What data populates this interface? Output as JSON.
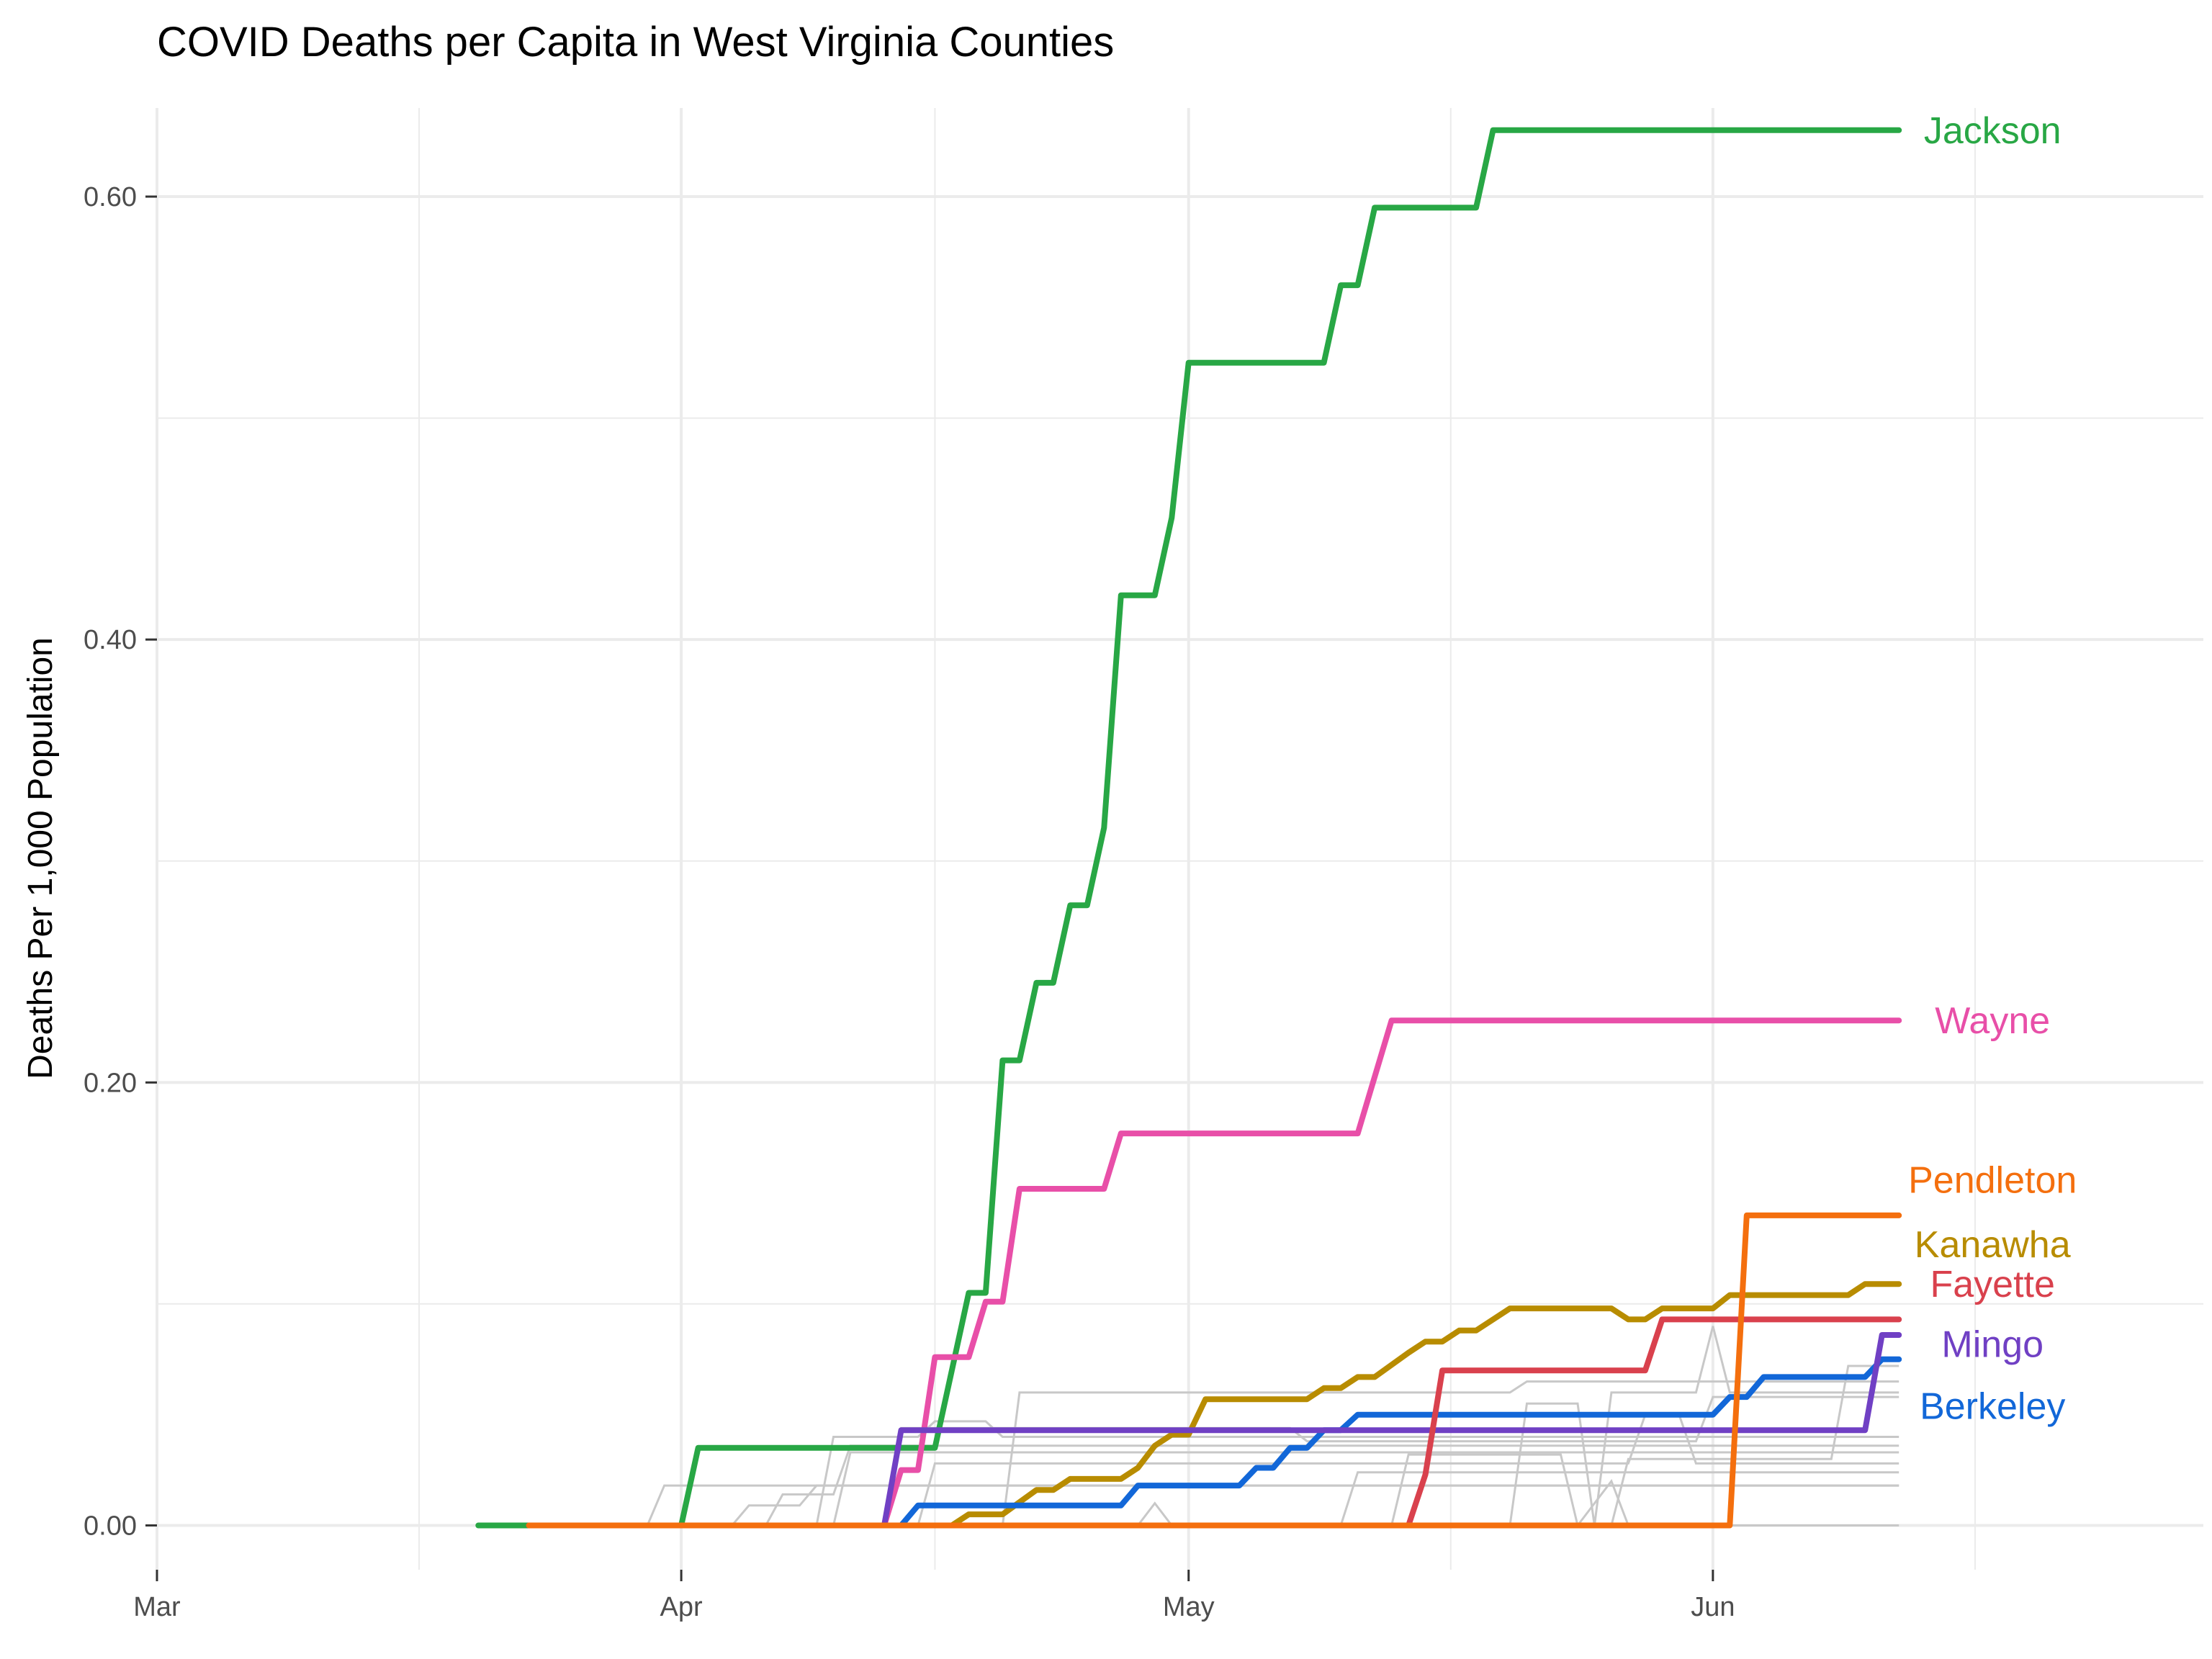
{
  "chart_data": {
    "type": "line",
    "title": "COVID Deaths per Capita in West Virginia Counties",
    "xlabel": "",
    "ylabel": "Deaths Per 1,000 Population",
    "x_type": "date",
    "xlim": [
      "2020-03-01",
      "2020-06-30"
    ],
    "ylim": [
      -0.02,
      0.64
    ],
    "x_ticks": [
      {
        "date": "2020-03-01",
        "label": "Mar"
      },
      {
        "date": "2020-04-01",
        "label": "Apr"
      },
      {
        "date": "2020-05-01",
        "label": "May"
      },
      {
        "date": "2020-06-01",
        "label": "Jun"
      }
    ],
    "y_ticks": [
      {
        "value": 0,
        "label": "0.00"
      },
      {
        "value": 0.2,
        "label": "0.20"
      },
      {
        "value": 0.4,
        "label": "0.40"
      },
      {
        "value": 0.6,
        "label": "0.60"
      }
    ],
    "grid": true,
    "legend": "none",
    "colors": {
      "Jackson": "#28a745",
      "Wayne": "#e84fa8",
      "Pendleton": "#f46f0e",
      "Kanawha": "#b88c00",
      "Fayette": "#d9414d",
      "Mingo": "#7040c4",
      "Berkeley": "#1267d8",
      "background": "#c8c8c8"
    },
    "series": [
      {
        "name": "Jackson",
        "points": [
          [
            "2020-03-20",
            0
          ],
          [
            "2020-04-01",
            0
          ],
          [
            "2020-04-02",
            0.035
          ],
          [
            "2020-04-16",
            0.035
          ],
          [
            "2020-04-17",
            0.07
          ],
          [
            "2020-04-18",
            0.105
          ],
          [
            "2020-04-19",
            0.105
          ],
          [
            "2020-04-20",
            0.21
          ],
          [
            "2020-04-21",
            0.21
          ],
          [
            "2020-04-22",
            0.245
          ],
          [
            "2020-04-23",
            0.245
          ],
          [
            "2020-04-24",
            0.28
          ],
          [
            "2020-04-25",
            0.28
          ],
          [
            "2020-04-26",
            0.315
          ],
          [
            "2020-04-27",
            0.42
          ],
          [
            "2020-04-28",
            0.42
          ],
          [
            "2020-04-29",
            0.42
          ],
          [
            "2020-04-30",
            0.455
          ],
          [
            "2020-05-01",
            0.525
          ],
          [
            "2020-05-09",
            0.525
          ],
          [
            "2020-05-10",
            0.56
          ],
          [
            "2020-05-11",
            0.56
          ],
          [
            "2020-05-12",
            0.595
          ],
          [
            "2020-05-18",
            0.595
          ],
          [
            "2020-05-19",
            0.63
          ],
          [
            "2020-06-12",
            0.63
          ]
        ]
      },
      {
        "name": "Wayne",
        "points": [
          [
            "2020-04-09",
            0
          ],
          [
            "2020-04-13",
            0
          ],
          [
            "2020-04-14",
            0.025
          ],
          [
            "2020-04-15",
            0.025
          ],
          [
            "2020-04-16",
            0.076
          ],
          [
            "2020-04-18",
            0.076
          ],
          [
            "2020-04-19",
            0.101
          ],
          [
            "2020-04-20",
            0.101
          ],
          [
            "2020-04-21",
            0.152
          ],
          [
            "2020-04-26",
            0.152
          ],
          [
            "2020-04-27",
            0.177
          ],
          [
            "2020-05-11",
            0.177
          ],
          [
            "2020-05-13",
            0.228
          ],
          [
            "2020-06-12",
            0.228
          ]
        ]
      },
      {
        "name": "Kanawha",
        "points": [
          [
            "2020-03-23",
            0
          ],
          [
            "2020-04-17",
            0
          ],
          [
            "2020-04-18",
            0.005
          ],
          [
            "2020-04-20",
            0.005
          ],
          [
            "2020-04-22",
            0.016
          ],
          [
            "2020-04-23",
            0.016
          ],
          [
            "2020-04-24",
            0.021
          ],
          [
            "2020-04-27",
            0.021
          ],
          [
            "2020-04-28",
            0.026
          ],
          [
            "2020-04-29",
            0.036
          ],
          [
            "2020-04-30",
            0.041
          ],
          [
            "2020-05-01",
            0.041
          ],
          [
            "2020-05-02",
            0.057
          ],
          [
            "2020-05-08",
            0.057
          ],
          [
            "2020-05-09",
            0.062
          ],
          [
            "2020-05-10",
            0.062
          ],
          [
            "2020-05-11",
            0.067
          ],
          [
            "2020-05-12",
            0.067
          ],
          [
            "2020-05-14",
            0.078
          ],
          [
            "2020-05-15",
            0.083
          ],
          [
            "2020-05-16",
            0.083
          ],
          [
            "2020-05-17",
            0.088
          ],
          [
            "2020-05-18",
            0.088
          ],
          [
            "2020-05-20",
            0.098
          ],
          [
            "2020-05-22",
            0.098
          ],
          [
            "2020-05-23",
            0.098
          ],
          [
            "2020-05-26",
            0.098
          ],
          [
            "2020-05-27",
            0.093
          ],
          [
            "2020-05-28",
            0.093
          ],
          [
            "2020-05-29",
            0.098
          ],
          [
            "2020-05-31",
            0.098
          ],
          [
            "2020-06-01",
            0.098
          ],
          [
            "2020-06-02",
            0.104
          ],
          [
            "2020-06-09",
            0.104
          ],
          [
            "2020-06-10",
            0.109
          ],
          [
            "2020-06-12",
            0.109
          ]
        ]
      },
      {
        "name": "Berkeley",
        "points": [
          [
            "2020-04-13",
            0
          ],
          [
            "2020-04-14",
            0
          ],
          [
            "2020-04-15",
            0.009
          ],
          [
            "2020-04-27",
            0.009
          ],
          [
            "2020-04-28",
            0.018
          ],
          [
            "2020-05-04",
            0.018
          ],
          [
            "2020-05-05",
            0.026
          ],
          [
            "2020-05-06",
            0.026
          ],
          [
            "2020-05-07",
            0.035
          ],
          [
            "2020-05-08",
            0.035
          ],
          [
            "2020-05-09",
            0.043
          ],
          [
            "2020-05-10",
            0.043
          ],
          [
            "2020-05-11",
            0.05
          ],
          [
            "2020-05-31",
            0.05
          ],
          [
            "2020-06-01",
            0.05
          ],
          [
            "2020-06-02",
            0.058
          ],
          [
            "2020-06-03",
            0.058
          ],
          [
            "2020-06-04",
            0.067
          ],
          [
            "2020-06-10",
            0.067
          ],
          [
            "2020-06-11",
            0.075
          ],
          [
            "2020-06-12",
            0.075
          ]
        ]
      },
      {
        "name": "Mingo",
        "points": [
          [
            "2020-04-08",
            0
          ],
          [
            "2020-04-13",
            0
          ],
          [
            "2020-04-14",
            0.043
          ],
          [
            "2020-06-10",
            0.043
          ],
          [
            "2020-06-11",
            0.086
          ],
          [
            "2020-06-12",
            0.086
          ]
        ]
      },
      {
        "name": "Fayette",
        "points": [
          [
            "2020-03-23",
            0
          ],
          [
            "2020-05-14",
            0
          ],
          [
            "2020-05-15",
            0.023
          ],
          [
            "2020-05-16",
            0.07
          ],
          [
            "2020-05-27",
            0.07
          ],
          [
            "2020-05-28",
            0.07
          ],
          [
            "2020-05-29",
            0.093
          ],
          [
            "2020-06-12",
            0.093
          ]
        ]
      },
      {
        "name": "Pendleton",
        "points": [
          [
            "2020-03-23",
            0
          ],
          [
            "2020-06-02",
            0
          ],
          [
            "2020-06-03",
            0.14
          ],
          [
            "2020-06-12",
            0.14
          ]
        ]
      }
    ],
    "end_labels": [
      {
        "series": "Jackson",
        "text": "Jackson",
        "value": 0.63
      },
      {
        "series": "Wayne",
        "text": "Wayne",
        "value": 0.228
      },
      {
        "series": "Pendleton",
        "text": "Pendleton",
        "value": 0.156
      },
      {
        "series": "Kanawha",
        "text": "Kanawha",
        "value": 0.127
      },
      {
        "series": "Fayette",
        "text": "Fayette",
        "value": 0.109
      },
      {
        "series": "Mingo",
        "text": "Mingo",
        "value": 0.082
      },
      {
        "series": "Berkeley",
        "text": "Berkeley",
        "value": 0.054
      }
    ],
    "background_series": [
      {
        "points": [
          [
            "2020-03-20",
            0
          ],
          [
            "2020-03-30",
            0
          ],
          [
            "2020-03-31",
            0.018
          ],
          [
            "2020-06-12",
            0.018
          ]
        ]
      },
      {
        "points": [
          [
            "2020-03-30",
            0
          ],
          [
            "2020-04-04",
            0
          ],
          [
            "2020-04-05",
            0.009
          ],
          [
            "2020-04-08",
            0.009
          ],
          [
            "2020-04-09",
            0.018
          ],
          [
            "2020-06-12",
            0.018
          ]
        ]
      },
      {
        "points": [
          [
            "2020-04-01",
            0
          ],
          [
            "2020-04-06",
            0
          ],
          [
            "2020-04-07",
            0.014
          ],
          [
            "2020-04-10",
            0.014
          ],
          [
            "2020-04-11",
            0.036
          ],
          [
            "2020-06-12",
            0.036
          ]
        ]
      },
      {
        "points": [
          [
            "2020-04-09",
            0
          ],
          [
            "2020-04-10",
            0.04
          ],
          [
            "2020-04-15",
            0.04
          ],
          [
            "2020-04-16",
            0.047
          ],
          [
            "2020-04-19",
            0.047
          ],
          [
            "2020-04-20",
            0.04
          ],
          [
            "2020-06-12",
            0.04
          ]
        ]
      },
      {
        "points": [
          [
            "2020-04-13",
            0
          ],
          [
            "2020-04-14",
            0.044
          ],
          [
            "2020-05-07",
            0.044
          ],
          [
            "2020-05-08",
            0.038
          ],
          [
            "2020-05-31",
            0.038
          ],
          [
            "2020-06-01",
            0.058
          ],
          [
            "2020-06-12",
            0.058
          ]
        ]
      },
      {
        "points": [
          [
            "2020-04-20",
            0
          ],
          [
            "2020-04-21",
            0.06
          ],
          [
            "2020-05-20",
            0.06
          ],
          [
            "2020-05-21",
            0.065
          ],
          [
            "2020-06-12",
            0.065
          ]
        ]
      },
      {
        "points": [
          [
            "2020-04-25",
            0
          ],
          [
            "2020-04-28",
            0
          ],
          [
            "2020-04-29",
            0.01
          ],
          [
            "2020-04-30",
            0
          ],
          [
            "2020-05-20",
            0
          ],
          [
            "2020-05-21",
            0.055
          ],
          [
            "2020-05-24",
            0.055
          ],
          [
            "2020-05-25",
            0
          ],
          [
            "2020-05-26",
            0.06
          ],
          [
            "2020-05-31",
            0.06
          ],
          [
            "2020-06-01",
            0.09
          ],
          [
            "2020-06-02",
            0.06
          ],
          [
            "2020-06-12",
            0.06
          ]
        ]
      },
      {
        "points": [
          [
            "2020-04-08",
            0
          ],
          [
            "2020-05-13",
            0
          ],
          [
            "2020-05-14",
            0.032
          ],
          [
            "2020-05-23",
            0.032
          ],
          [
            "2020-05-24",
            0
          ],
          [
            "2020-05-26",
            0.02
          ],
          [
            "2020-05-27",
            0
          ],
          [
            "2020-06-12",
            0
          ]
        ]
      },
      {
        "points": [
          [
            "2020-04-15",
            0
          ],
          [
            "2020-04-16",
            0.028
          ],
          [
            "2020-05-27",
            0.028
          ],
          [
            "2020-05-28",
            0.05
          ],
          [
            "2020-05-30",
            0.05
          ],
          [
            "2020-05-31",
            0.028
          ],
          [
            "2020-06-12",
            0.028
          ]
        ]
      },
      {
        "points": [
          [
            "2020-05-10",
            0
          ],
          [
            "2020-05-11",
            0.024
          ],
          [
            "2020-06-12",
            0.024
          ]
        ]
      },
      {
        "points": [
          [
            "2020-05-20",
            0
          ],
          [
            "2020-05-26",
            0
          ],
          [
            "2020-05-27",
            0.03
          ],
          [
            "2020-06-08",
            0.03
          ],
          [
            "2020-06-09",
            0.072
          ],
          [
            "2020-06-12",
            0.072
          ]
        ]
      },
      {
        "points": [
          [
            "2020-04-10",
            0
          ],
          [
            "2020-04-11",
            0.033
          ],
          [
            "2020-06-12",
            0.033
          ]
        ]
      }
    ]
  }
}
